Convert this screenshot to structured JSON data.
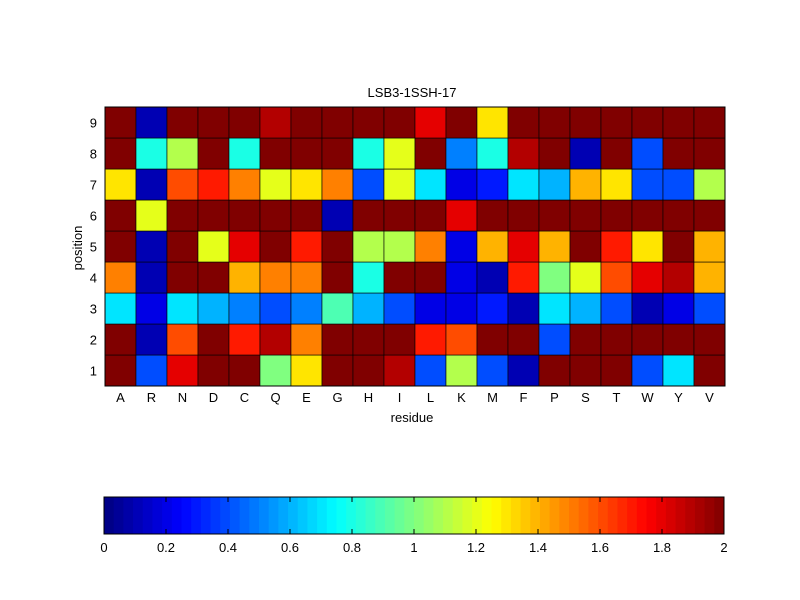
{
  "chart_data": {
    "type": "heatmap",
    "title": "LSB3-1SSH-17",
    "xlabel": "residue",
    "ylabel": "position",
    "x_categories": [
      "A",
      "R",
      "N",
      "D",
      "C",
      "Q",
      "E",
      "G",
      "H",
      "I",
      "L",
      "K",
      "M",
      "F",
      "P",
      "S",
      "T",
      "W",
      "Y",
      "V"
    ],
    "y_categories": [
      "1",
      "2",
      "3",
      "4",
      "5",
      "6",
      "7",
      "8",
      "9"
    ],
    "values": [
      [
        2.0,
        0.4,
        1.8,
        2.0,
        2.0,
        1.0,
        1.3,
        2.0,
        2.0,
        1.9,
        0.4,
        1.1,
        0.4,
        0.1,
        2.0,
        2.0,
        2.0,
        0.4,
        0.7,
        2.0
      ],
      [
        2.0,
        0.1,
        1.6,
        2.0,
        1.7,
        1.9,
        1.5,
        2.0,
        2.0,
        2.0,
        1.7,
        1.6,
        2.0,
        2.0,
        0.4,
        2.0,
        2.0,
        2.0,
        2.0,
        2.0
      ],
      [
        0.7,
        0.2,
        0.7,
        0.6,
        0.5,
        0.4,
        0.5,
        0.9,
        0.6,
        0.4,
        0.2,
        0.2,
        0.3,
        0.1,
        0.7,
        0.6,
        0.4,
        0.1,
        0.2,
        0.4
      ],
      [
        1.5,
        0.1,
        2.0,
        2.0,
        1.4,
        1.5,
        1.5,
        2.0,
        0.8,
        2.0,
        2.0,
        0.2,
        0.1,
        1.7,
        1.0,
        1.2,
        1.6,
        1.8,
        1.9,
        1.4
      ],
      [
        2.0,
        0.1,
        2.0,
        1.2,
        1.8,
        2.0,
        1.7,
        2.0,
        1.1,
        1.1,
        1.5,
        0.2,
        1.4,
        1.8,
        1.4,
        2.0,
        1.7,
        1.3,
        2.0,
        1.4
      ],
      [
        2.0,
        1.2,
        2.0,
        2.0,
        2.0,
        2.0,
        2.0,
        0.1,
        2.0,
        2.0,
        2.0,
        1.8,
        2.0,
        2.0,
        2.0,
        2.0,
        2.0,
        2.0,
        2.0,
        2.0
      ],
      [
        1.3,
        0.1,
        1.6,
        1.7,
        1.5,
        1.2,
        1.3,
        1.5,
        0.4,
        1.2,
        0.7,
        0.2,
        0.3,
        0.7,
        0.6,
        1.4,
        1.3,
        0.4,
        0.4,
        1.1
      ],
      [
        2.0,
        0.8,
        1.1,
        2.0,
        0.8,
        2.0,
        2.0,
        2.0,
        0.8,
        1.2,
        2.0,
        0.5,
        0.8,
        1.9,
        2.0,
        0.1,
        2.0,
        0.4,
        2.0,
        2.0
      ],
      [
        2.0,
        0.1,
        2.0,
        2.0,
        2.0,
        1.9,
        2.0,
        2.0,
        2.0,
        2.0,
        1.8,
        2.0,
        1.3,
        2.0,
        2.0,
        2.0,
        2.0,
        2.0,
        2.0,
        2.0
      ]
    ],
    "zlim": [
      0,
      2
    ],
    "colormap": "jet",
    "colorbar": {
      "placement": "bottom",
      "ticks": [
        0,
        0.2,
        0.4,
        0.6,
        0.8,
        1,
        1.2,
        1.4,
        1.6,
        1.8,
        2
      ],
      "tick_labels": [
        "0",
        "0.2",
        "0.4",
        "0.6",
        "0.8",
        "1",
        "1.2",
        "1.4",
        "1.6",
        "1.8",
        "2"
      ]
    }
  }
}
